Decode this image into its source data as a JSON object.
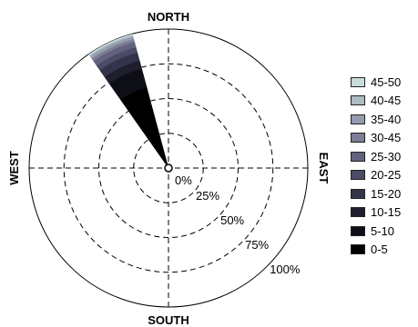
{
  "chart_data": {
    "type": "wind-rose",
    "directions": {
      "north": "NORTH",
      "south": "SOUTH",
      "east": "EAST",
      "west": "WEST"
    },
    "radial_ticks": [
      "0%",
      "25%",
      "50%",
      "75%",
      "100%"
    ],
    "radial_max": 100,
    "grid": true,
    "legend_position": "right",
    "sector": {
      "from_deg": 325,
      "to_deg": 345
    },
    "bins": [
      {
        "label": "0-5",
        "upper": 60,
        "color": "#000000"
      },
      {
        "label": "5-10",
        "upper": 74,
        "color": "#0e0e16"
      },
      {
        "label": "10-15",
        "upper": 80,
        "color": "#1e1e2c"
      },
      {
        "label": "15-20",
        "upper": 86,
        "color": "#33334a"
      },
      {
        "label": "20-25",
        "upper": 90,
        "color": "#4b4b66"
      },
      {
        "label": "25-30",
        "upper": 94,
        "color": "#62627e"
      },
      {
        "label": "30-45",
        "upper": 96,
        "color": "#7c7e96"
      },
      {
        "label": "35-40",
        "upper": 98,
        "color": "#949cae"
      },
      {
        "label": "40-45",
        "upper": 99,
        "color": "#adbcc2"
      },
      {
        "label": "45-50",
        "upper": 100,
        "color": "#c9dcd9"
      }
    ]
  }
}
